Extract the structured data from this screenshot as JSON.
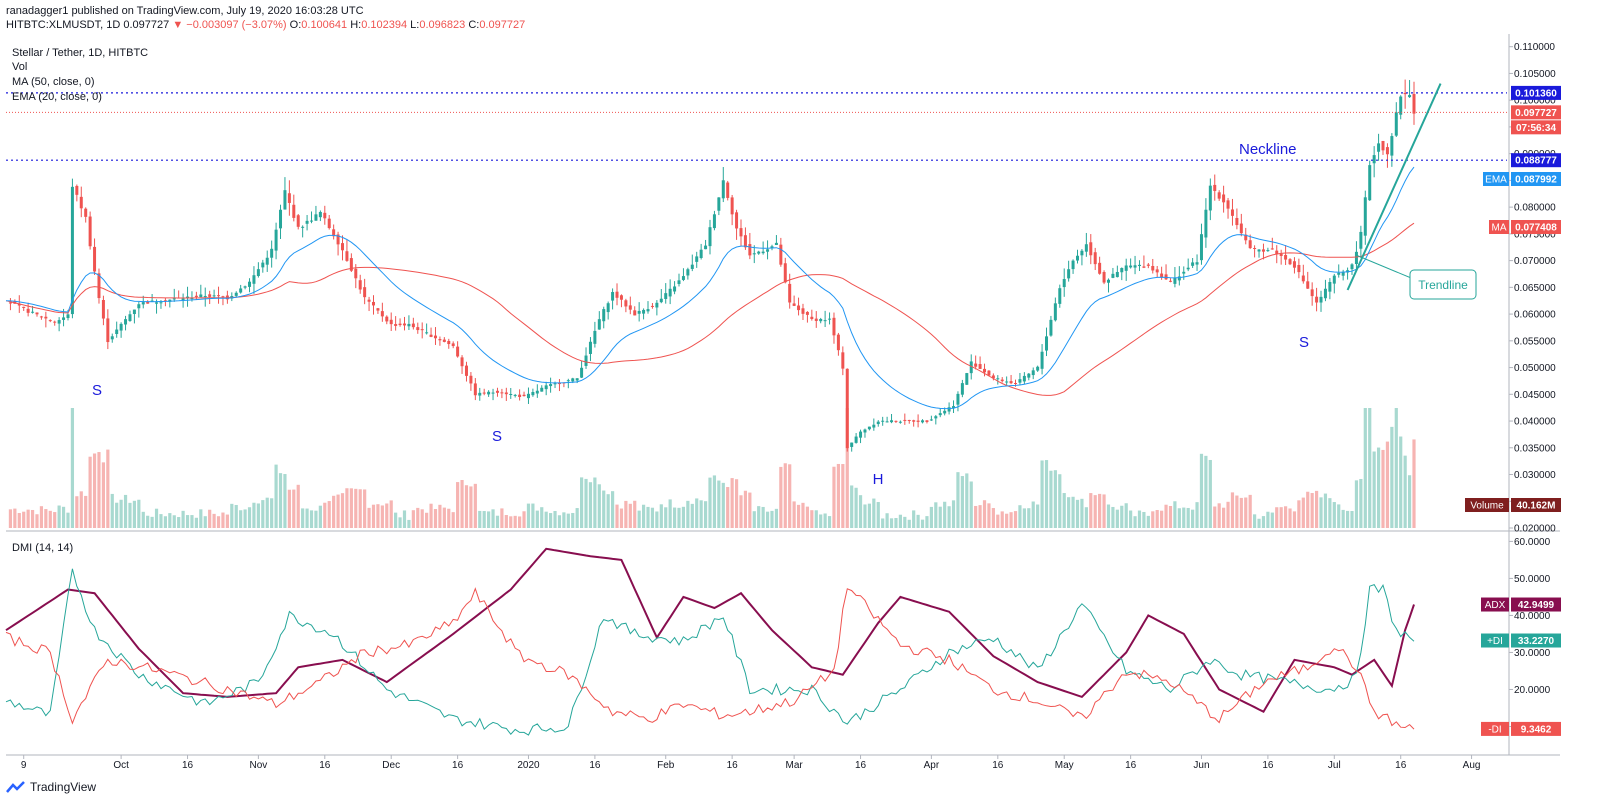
{
  "header": {
    "line1": "ranadagger1 published on TradingView.com, July 19, 2020 16:03:28 UTC",
    "symbol": "HITBTC:XLMUSDT, 1D",
    "last": "0.097727",
    "change": "−0.003097 (−3.07%)",
    "o_label": "O:",
    "o_value": "0.100641",
    "h_label": "H:",
    "h_value": "0.102394",
    "l_label": "L:",
    "l_value": "0.096823",
    "c_label": "C:",
    "c_value": "0.097727"
  },
  "legend": {
    "title": "Stellar / Tether, 1D, HITBTC",
    "vol": "Vol",
    "ma": "MA (50, close, 0)",
    "ema": "EMA (20, close, 0)",
    "dmi": "DMI (14, 14)"
  },
  "annotations": {
    "neckline": "Neckline",
    "trendline": "Trendline",
    "s1": "S",
    "s2": "S",
    "h": "H",
    "s3": "S"
  },
  "price_axis": {
    "ticks": [
      "0.110000",
      "0.105000",
      "0.100000",
      "0.095000",
      "0.090000",
      "0.085000",
      "0.080000",
      "0.075000",
      "0.070000",
      "0.065000",
      "0.060000",
      "0.055000",
      "0.050000",
      "0.045000",
      "0.040000",
      "0.035000",
      "0.030000",
      "0.025000",
      "0.020000"
    ],
    "labels": [
      {
        "key": "level_high",
        "text": "0.101360",
        "color": "#1a1adb"
      },
      {
        "key": "last",
        "text": "0.097727",
        "color": "#ef5350"
      },
      {
        "key": "countdown",
        "text": "07:56:34",
        "color": "#ef5350"
      },
      {
        "key": "neck",
        "text": "0.088777",
        "color": "#1a1adb"
      },
      {
        "key": "ema",
        "prefix": "EMA",
        "text": "0.087992",
        "color": "#2196f3"
      },
      {
        "key": "ma",
        "prefix": "MA",
        "text": "0.077408",
        "color": "#ef5350"
      },
      {
        "key": "volume",
        "prefix": "Volume",
        "text": "40.162M",
        "color": "#7f1f1f"
      }
    ]
  },
  "dmi_axis": {
    "ticks": [
      "60.0000",
      "50.0000",
      "40.0000",
      "30.0000",
      "20.0000",
      "10.0000"
    ],
    "labels": [
      {
        "key": "adx",
        "prefix": "ADX",
        "text": "42.9499",
        "color": "#880e4f"
      },
      {
        "key": "pdi",
        "prefix": "+DI",
        "text": "33.2270",
        "color": "#26a69a"
      },
      {
        "key": "mdi",
        "prefix": "-DI",
        "text": "9.3462",
        "color": "#ef5350"
      }
    ]
  },
  "time_axis": [
    "9",
    "Oct",
    "16",
    "Nov",
    "16",
    "Dec",
    "16",
    "2020",
    "16",
    "Feb",
    "16",
    "Mar",
    "16",
    "Apr",
    "16",
    "May",
    "16",
    "Jun",
    "16",
    "Jul",
    "16",
    "Aug"
  ],
  "colors": {
    "up": "#26a69a",
    "down": "#ef5350",
    "ma": "#ef5350",
    "ema": "#2196f3",
    "adx": "#880e4f",
    "pdi": "#26a69a",
    "mdi": "#ef5350",
    "level": "#1a1adb",
    "trendline": "#26a69a"
  },
  "chart_data": [
    {
      "type": "candlestick",
      "title": "Stellar / Tether, 1D, HITBTC",
      "ylim": [
        0.02,
        0.112
      ],
      "x_range": [
        "2019-09-05",
        "2020-07-19"
      ],
      "levels": [
        {
          "name": "resistance",
          "value": 0.10136
        },
        {
          "name": "last",
          "value": 0.097727
        },
        {
          "name": "Neckline",
          "value": 0.088777
        }
      ],
      "close_waypoints": [
        [
          "2019-09-05",
          0.0625
        ],
        [
          "2019-09-10",
          0.0605
        ],
        [
          "2019-09-16",
          0.0585
        ],
        [
          "2019-09-19",
          0.0598
        ],
        [
          "2019-09-20",
          0.084
        ],
        [
          "2019-09-23",
          0.078
        ],
        [
          "2019-09-26",
          0.063
        ],
        [
          "2019-09-28",
          0.055
        ],
        [
          "2019-10-05",
          0.062
        ],
        [
          "2019-10-15",
          0.063
        ],
        [
          "2019-10-20",
          0.0635
        ],
        [
          "2019-10-25",
          0.063
        ],
        [
          "2019-10-30",
          0.066
        ],
        [
          "2019-11-04",
          0.072
        ],
        [
          "2019-11-07",
          0.083
        ],
        [
          "2019-11-10",
          0.076
        ],
        [
          "2019-11-15",
          0.079
        ],
        [
          "2019-11-20",
          0.072
        ],
        [
          "2019-11-25",
          0.063
        ],
        [
          "2019-12-01",
          0.058
        ],
        [
          "2019-12-05",
          0.058
        ],
        [
          "2019-12-15",
          0.054
        ],
        [
          "2019-12-20",
          0.045
        ],
        [
          "2019-12-25",
          0.0455
        ],
        [
          "2019-12-31",
          0.0445
        ],
        [
          "2020-01-05",
          0.0465
        ],
        [
          "2020-01-12",
          0.048
        ],
        [
          "2020-01-17",
          0.059
        ],
        [
          "2020-01-20",
          0.064
        ],
        [
          "2020-01-25",
          0.06
        ],
        [
          "2020-01-30",
          0.062
        ],
        [
          "2020-02-05",
          0.067
        ],
        [
          "2020-02-10",
          0.073
        ],
        [
          "2020-02-14",
          0.085
        ],
        [
          "2020-02-17",
          0.076
        ],
        [
          "2020-02-20",
          0.071
        ],
        [
          "2020-02-26",
          0.073
        ],
        [
          "2020-02-29",
          0.062
        ],
        [
          "2020-03-05",
          0.059
        ],
        [
          "2020-03-09",
          0.059
        ],
        [
          "2020-03-12",
          0.05
        ],
        [
          "2020-03-13",
          0.035
        ],
        [
          "2020-03-16",
          0.038
        ],
        [
          "2020-03-20",
          0.04
        ],
        [
          "2020-03-25",
          0.04
        ],
        [
          "2020-03-31",
          0.04
        ],
        [
          "2020-04-06",
          0.043
        ],
        [
          "2020-04-10",
          0.051
        ],
        [
          "2020-04-15",
          0.048
        ],
        [
          "2020-04-20",
          0.047
        ],
        [
          "2020-04-25",
          0.05
        ],
        [
          "2020-04-30",
          0.065
        ],
        [
          "2020-05-03",
          0.07
        ],
        [
          "2020-05-06",
          0.073
        ],
        [
          "2020-05-10",
          0.066
        ],
        [
          "2020-05-15",
          0.069
        ],
        [
          "2020-05-20",
          0.069
        ],
        [
          "2020-05-25",
          0.066
        ],
        [
          "2020-05-31",
          0.07
        ],
        [
          "2020-06-03",
          0.084
        ],
        [
          "2020-06-07",
          0.08
        ],
        [
          "2020-06-12",
          0.072
        ],
        [
          "2020-06-17",
          0.072
        ],
        [
          "2020-06-22",
          0.069
        ],
        [
          "2020-06-27",
          0.062
        ],
        [
          "2020-07-01",
          0.067
        ],
        [
          "2020-07-05",
          0.069
        ],
        [
          "2020-07-07",
          0.075
        ],
        [
          "2020-07-09",
          0.088
        ],
        [
          "2020-07-11",
          0.092
        ],
        [
          "2020-07-13",
          0.09
        ],
        [
          "2020-07-16",
          0.101
        ],
        [
          "2020-07-18",
          0.101
        ],
        [
          "2020-07-19",
          0.0977
        ]
      ]
    },
    {
      "type": "bar",
      "title": "Vol",
      "series": [
        {
          "name": "Volume",
          "last": 40.162
        }
      ]
    },
    {
      "type": "line",
      "title": "DMI (14, 14)",
      "ylim": [
        5,
        62
      ],
      "series": [
        {
          "name": "ADX",
          "last": 42.9499,
          "waypoints": [
            [
              "2019-09-05",
              36
            ],
            [
              "2019-09-19",
              47
            ],
            [
              "2019-09-25",
              46
            ],
            [
              "2019-10-05",
              31
            ],
            [
              "2019-10-15",
              19
            ],
            [
              "2019-10-25",
              18
            ],
            [
              "2019-11-05",
              19
            ],
            [
              "2019-11-10",
              26
            ],
            [
              "2019-11-20",
              28
            ],
            [
              "2019-11-30",
              22
            ],
            [
              "2019-12-15",
              35
            ],
            [
              "2019-12-28",
              47
            ],
            [
              "2020-01-05",
              58
            ],
            [
              "2020-01-15",
              56
            ],
            [
              "2020-01-22",
              55
            ],
            [
              "2020-01-30",
              34
            ],
            [
              "2020-02-05",
              45
            ],
            [
              "2020-02-12",
              42
            ],
            [
              "2020-02-18",
              46
            ],
            [
              "2020-02-25",
              36
            ],
            [
              "2020-03-05",
              26
            ],
            [
              "2020-03-12",
              24
            ],
            [
              "2020-03-20",
              38
            ],
            [
              "2020-03-25",
              45
            ],
            [
              "2020-04-05",
              41
            ],
            [
              "2020-04-15",
              29
            ],
            [
              "2020-04-25",
              22
            ],
            [
              "2020-05-05",
              18
            ],
            [
              "2020-05-15",
              30
            ],
            [
              "2020-05-20",
              40
            ],
            [
              "2020-05-28",
              35
            ],
            [
              "2020-06-05",
              20
            ],
            [
              "2020-06-15",
              14
            ],
            [
              "2020-06-22",
              28
            ],
            [
              "2020-07-01",
              26
            ],
            [
              "2020-07-05",
              24
            ],
            [
              "2020-07-10",
              28
            ],
            [
              "2020-07-14",
              21
            ],
            [
              "2020-07-17",
              36
            ],
            [
              "2020-07-19",
              42.95
            ]
          ]
        },
        {
          "name": "+DI",
          "last": 33.227,
          "waypoints": [
            [
              "2019-09-05",
              17
            ],
            [
              "2019-09-15",
              13
            ],
            [
              "2019-09-20",
              52
            ],
            [
              "2019-09-25",
              36
            ],
            [
              "2019-10-05",
              24
            ],
            [
              "2019-10-20",
              16
            ],
            [
              "2019-11-01",
              22
            ],
            [
              "2019-11-08",
              40
            ],
            [
              "2019-11-18",
              35
            ],
            [
              "2019-11-30",
              20
            ],
            [
              "2019-12-15",
              12
            ],
            [
              "2019-12-30",
              9
            ],
            [
              "2020-01-10",
              10
            ],
            [
              "2020-01-18",
              40
            ],
            [
              "2020-01-25",
              35
            ],
            [
              "2020-02-05",
              33
            ],
            [
              "2020-02-14",
              40
            ],
            [
              "2020-02-20",
              20
            ],
            [
              "2020-03-05",
              20
            ],
            [
              "2020-03-13",
              11
            ],
            [
              "2020-03-25",
              20
            ],
            [
              "2020-04-05",
              30
            ],
            [
              "2020-04-15",
              34
            ],
            [
              "2020-04-25",
              25
            ],
            [
              "2020-05-05",
              43
            ],
            [
              "2020-05-15",
              25
            ],
            [
              "2020-05-25",
              20
            ],
            [
              "2020-06-03",
              28
            ],
            [
              "2020-06-10",
              24
            ],
            [
              "2020-06-20",
              22
            ],
            [
              "2020-06-30",
              20
            ],
            [
              "2020-07-06",
              23
            ],
            [
              "2020-07-09",
              47
            ],
            [
              "2020-07-12",
              47
            ],
            [
              "2020-07-15",
              36
            ],
            [
              "2020-07-19",
              33.23
            ]
          ]
        },
        {
          "name": "-DI",
          "last": 9.3462,
          "waypoints": [
            [
              "2019-09-05",
              34
            ],
            [
              "2019-09-15",
              30
            ],
            [
              "2019-09-20",
              12
            ],
            [
              "2019-09-28",
              28
            ],
            [
              "2019-10-10",
              25
            ],
            [
              "2019-10-25",
              20
            ],
            [
              "2019-11-05",
              16
            ],
            [
              "2019-11-15",
              22
            ],
            [
              "2019-11-25",
              30
            ],
            [
              "2019-12-05",
              32
            ],
            [
              "2019-12-15",
              38
            ],
            [
              "2019-12-20",
              46
            ],
            [
              "2019-12-30",
              29
            ],
            [
              "2020-01-10",
              24
            ],
            [
              "2020-01-20",
              14
            ],
            [
              "2020-01-28",
              12
            ],
            [
              "2020-02-05",
              16
            ],
            [
              "2020-02-14",
              13
            ],
            [
              "2020-02-20",
              14
            ],
            [
              "2020-03-01",
              17
            ],
            [
              "2020-03-10",
              25
            ],
            [
              "2020-03-13",
              48
            ],
            [
              "2020-03-25",
              32
            ],
            [
              "2020-04-05",
              28
            ],
            [
              "2020-04-15",
              20
            ],
            [
              "2020-04-25",
              17
            ],
            [
              "2020-05-05",
              12
            ],
            [
              "2020-05-15",
              25
            ],
            [
              "2020-05-25",
              22
            ],
            [
              "2020-06-05",
              12
            ],
            [
              "2020-06-15",
              22
            ],
            [
              "2020-06-25",
              26
            ],
            [
              "2020-07-01",
              32
            ],
            [
              "2020-07-06",
              26
            ],
            [
              "2020-07-10",
              14
            ],
            [
              "2020-07-16",
              10
            ],
            [
              "2020-07-19",
              9.35
            ]
          ]
        }
      ]
    }
  ]
}
